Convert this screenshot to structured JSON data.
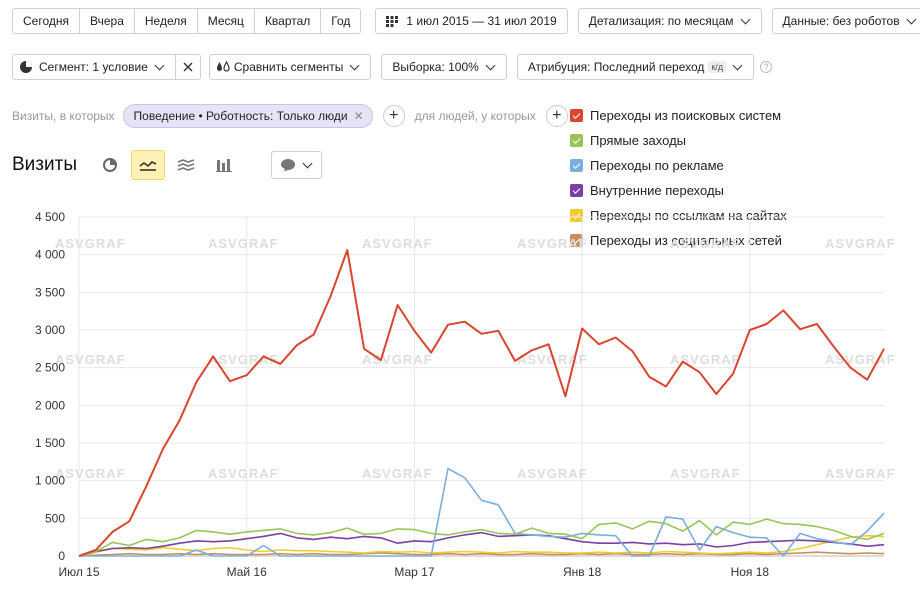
{
  "periods": [
    "Сегодня",
    "Вчера",
    "Неделя",
    "Месяц",
    "Квартал",
    "Год"
  ],
  "date_range": "1 июл 2015 — 31 июл 2019",
  "detail": "Детализация: по месяцам",
  "data_filter": "Данные: без роботов",
  "segment": "Сегмент: 1 условие",
  "compare": "Сравнить сегменты",
  "sample": "Выборка: 100%",
  "attribution": "Атрибуция: Последний переход",
  "attribution_badge": "к/д",
  "help_glyph": "?",
  "filter": {
    "prefix": "Визиты, в которых",
    "chip": "Поведение • Роботность: Только люди",
    "people": "для людей, у которых"
  },
  "metric_title": "Визиты",
  "legend": [
    {
      "name": "Переходы из поисковых систем",
      "color": "#d9462d"
    },
    {
      "name": "Прямые заходы",
      "color": "#9ac45a"
    },
    {
      "name": "Переходы по рекламе",
      "color": "#7baee0"
    },
    {
      "name": "Внутренние переходы",
      "color": "#7b3fa6"
    },
    {
      "name": "Переходы по ссылкам на сайтах",
      "color": "#f2cc2f"
    },
    {
      "name": "Переходы из социальных сетей",
      "color": "#c48f5c"
    }
  ],
  "chart_data": {
    "type": "line",
    "watermark": "ASVGRAF",
    "x_start": "2015-07",
    "ylim": [
      0,
      4500
    ],
    "yticks": [
      "0",
      "500",
      "1 000",
      "1 500",
      "2 000",
      "2 500",
      "3 000",
      "3 500",
      "4 000",
      "4 500"
    ],
    "xticks": [
      {
        "index": 0,
        "label": "Июл 15"
      },
      {
        "index": 10,
        "label": "Май 16"
      },
      {
        "index": 20,
        "label": "Мар 17"
      },
      {
        "index": 30,
        "label": "Янв 18"
      },
      {
        "index": 40,
        "label": "Ноя 18"
      }
    ],
    "series": [
      {
        "name": "Переходы из поисковых систем",
        "color": "#d9462d",
        "values": [
          0,
          80,
          320,
          460,
          920,
          1420,
          1800,
          2310,
          2650,
          2320,
          2400,
          2650,
          2550,
          2800,
          2940,
          3450,
          4060,
          2750,
          2600,
          3330,
          2990,
          2700,
          3070,
          3110,
          2950,
          2990,
          2590,
          2730,
          2810,
          2120,
          3020,
          2810,
          2900,
          2720,
          2380,
          2250,
          2580,
          2440,
          2150,
          2420,
          3000,
          3080,
          3260,
          3010,
          3080,
          2780,
          2500,
          2340,
          2750
        ]
      },
      {
        "name": "Прямые заходы",
        "color": "#9ac45a",
        "values": [
          0,
          60,
          180,
          140,
          220,
          190,
          240,
          340,
          320,
          290,
          320,
          340,
          360,
          300,
          280,
          310,
          370,
          290,
          300,
          360,
          350,
          300,
          280,
          320,
          350,
          300,
          290,
          370,
          300,
          290,
          230,
          420,
          440,
          360,
          460,
          430,
          330,
          470,
          280,
          450,
          420,
          490,
          430,
          420,
          390,
          340,
          260,
          220,
          300
        ]
      },
      {
        "name": "Переходы по рекламе",
        "color": "#7baee0",
        "values": [
          0,
          0,
          0,
          0,
          0,
          0,
          0,
          80,
          0,
          0,
          0,
          140,
          0,
          0,
          0,
          0,
          0,
          0,
          0,
          0,
          0,
          0,
          1160,
          1040,
          740,
          680,
          300,
          280,
          260,
          250,
          300,
          280,
          270,
          0,
          0,
          520,
          490,
          80,
          390,
          310,
          250,
          240,
          0,
          300,
          230,
          190,
          150,
          330,
          570
        ]
      },
      {
        "name": "Внутренние переходы",
        "color": "#7b3fa6",
        "values": [
          0,
          60,
          100,
          110,
          100,
          130,
          170,
          200,
          190,
          200,
          230,
          260,
          300,
          240,
          220,
          250,
          230,
          260,
          240,
          170,
          200,
          190,
          240,
          280,
          310,
          260,
          270,
          280,
          270,
          230,
          190,
          170,
          170,
          180,
          160,
          170,
          150,
          160,
          120,
          140,
          180,
          190,
          200,
          210,
          200,
          180,
          160,
          130,
          150
        ]
      },
      {
        "name": "Переходы по ссылкам на сайтах",
        "color": "#f2cc2f",
        "values": [
          0,
          50,
          100,
          90,
          80,
          110,
          90,
          70,
          100,
          110,
          80,
          60,
          80,
          70,
          70,
          60,
          50,
          40,
          60,
          50,
          60,
          40,
          50,
          60,
          50,
          40,
          60,
          50,
          50,
          40,
          40,
          50,
          40,
          50,
          40,
          60,
          50,
          40,
          30,
          40,
          50,
          40,
          60,
          100,
          150,
          200,
          250,
          270,
          260
        ]
      },
      {
        "name": "Переходы из социальных сетей",
        "color": "#c48f5c",
        "values": [
          0,
          10,
          20,
          30,
          20,
          20,
          30,
          20,
          30,
          20,
          20,
          20,
          30,
          20,
          30,
          20,
          20,
          30,
          40,
          30,
          20,
          20,
          30,
          20,
          30,
          20,
          20,
          30,
          20,
          20,
          30,
          20,
          30,
          20,
          20,
          30,
          20,
          30,
          20,
          20,
          30,
          20,
          30,
          40,
          50,
          40,
          30,
          40,
          30
        ]
      }
    ]
  }
}
